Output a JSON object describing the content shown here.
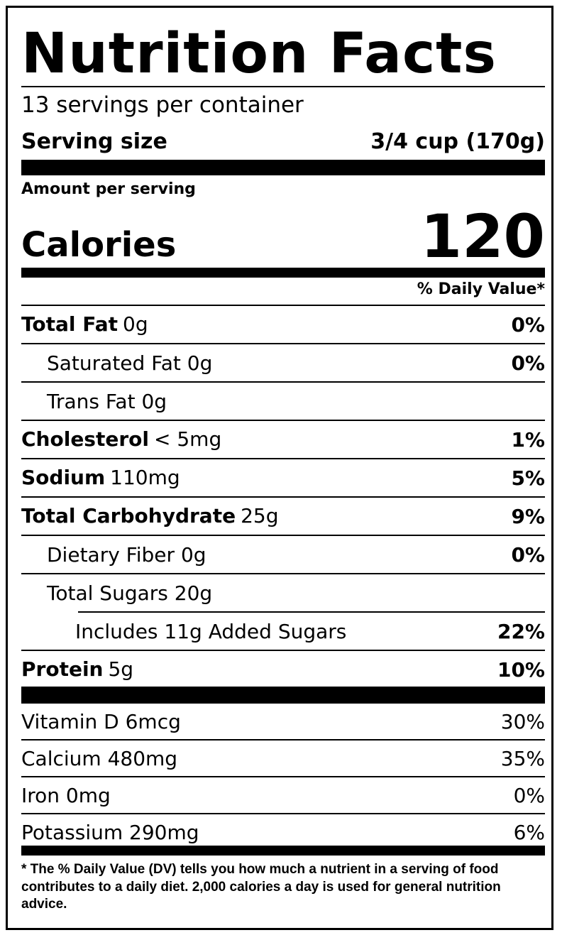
{
  "title": "Nutrition Facts",
  "servings_per_container": "13 servings per container",
  "serving_size": {
    "label": "Serving size",
    "value": "3/4 cup (170g)"
  },
  "amount_per_serving": "Amount per serving",
  "calories": {
    "label": "Calories",
    "value": "120"
  },
  "daily_value_header": "% Daily Value*",
  "nutrients": [
    {
      "name": "Total Fat",
      "amount": "0g",
      "dv": "0%"
    },
    {
      "name": "Saturated Fat",
      "amount": "0g",
      "dv": "0%"
    },
    {
      "name": "Trans Fat",
      "amount": "0g",
      "dv": ""
    },
    {
      "name": "Cholesterol",
      "amount": "< 5mg",
      "dv": "1%"
    },
    {
      "name": "Sodium",
      "amount": "110mg",
      "dv": "5%"
    },
    {
      "name": "Total Carbohydrate",
      "amount": "25g",
      "dv": "9%"
    },
    {
      "name": "Dietary Fiber",
      "amount": "0g",
      "dv": "0%"
    },
    {
      "name": "Total Sugars",
      "amount": "20g",
      "dv": ""
    },
    {
      "name": "Includes 11g Added Sugars",
      "amount": "",
      "dv": "22%"
    },
    {
      "name": "Protein",
      "amount": "5g",
      "dv": "10%"
    }
  ],
  "vitamins": [
    {
      "name": "Vitamin D 6mcg",
      "dv": "30%"
    },
    {
      "name": "Calcium 480mg",
      "dv": "35%"
    },
    {
      "name": "Iron 0mg",
      "dv": "0%"
    },
    {
      "name": "Potassium 290mg",
      "dv": "6%"
    }
  ],
  "footnote": "* The % Daily Value (DV) tells you how much a nutrient in a serving of food contributes to a daily diet. 2,000 calories a day is used for general nutrition advice."
}
